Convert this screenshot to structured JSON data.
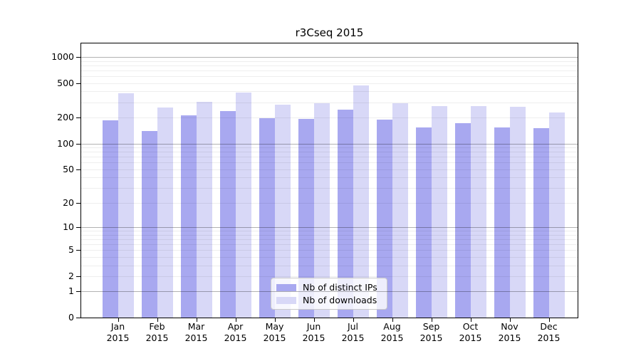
{
  "chart_data": {
    "type": "bar",
    "title": "r3Cseq 2015",
    "categories": [
      "Jan",
      "Feb",
      "Mar",
      "Apr",
      "May",
      "Jun",
      "Jul",
      "Aug",
      "Sep",
      "Oct",
      "Nov",
      "Dec"
    ],
    "category_year": "2015",
    "series": [
      {
        "name": "Nb of distinct IPs",
        "color": "#a8a8f0",
        "values": [
          184,
          140,
          212,
          238,
          198,
          191,
          248,
          190,
          153,
          173,
          154,
          150
        ]
      },
      {
        "name": "Nb of downloads",
        "color": "#d8d8f7",
        "values": [
          382,
          261,
          302,
          386,
          282,
          293,
          466,
          290,
          269,
          272,
          264,
          230
        ]
      }
    ],
    "yscale": "log1p",
    "yticks": [
      0,
      1,
      2,
      5,
      10,
      20,
      50,
      100,
      200,
      500,
      1000
    ],
    "ylim": [
      0,
      1430
    ],
    "xlabel": "",
    "ylabel": "",
    "grid": "horizontal major+minor",
    "legend_position": "inside lower center"
  },
  "colors": {
    "bar_distinct_ips": "#a8a8f0",
    "bar_downloads": "#d8d8f7",
    "grid_major": "#b3b3b3",
    "grid_minor": "#ebebeb",
    "spine": "#000000",
    "background": "#ffffff"
  }
}
